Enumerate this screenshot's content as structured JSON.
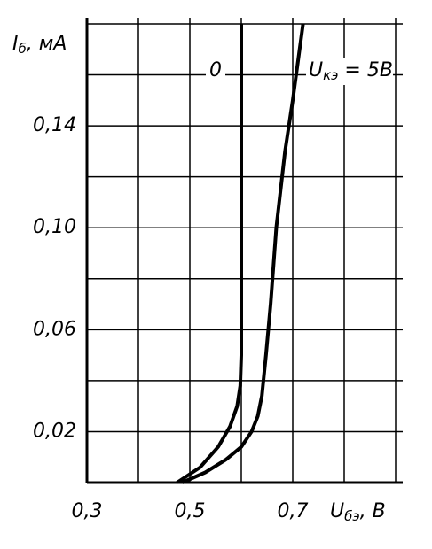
{
  "chart_data": {
    "type": "line",
    "y_label": {
      "main": "I",
      "sub": "б",
      "rest": ", мА"
    },
    "x_label": {
      "main": "U",
      "sub": "бэ",
      "rest": ", В"
    },
    "xlim": [
      0.3,
      0.9
    ],
    "ylim": [
      0,
      0.18
    ],
    "xticks": [
      {
        "value": 0.3,
        "label": "0,3"
      },
      {
        "value": 0.4,
        "label": null
      },
      {
        "value": 0.5,
        "label": "0,5"
      },
      {
        "value": 0.6,
        "label": null
      },
      {
        "value": 0.7,
        "label": "0,7"
      },
      {
        "value": 0.8,
        "label": null
      },
      {
        "value": 0.9,
        "label": null
      }
    ],
    "yticks": [
      {
        "value": 0,
        "label": null
      },
      {
        "value": 0.02,
        "label": "0,02"
      },
      {
        "value": 0.04,
        "label": null
      },
      {
        "value": 0.06,
        "label": "0,06"
      },
      {
        "value": 0.08,
        "label": null
      },
      {
        "value": 0.1,
        "label": "0,10"
      },
      {
        "value": 0.12,
        "label": null
      },
      {
        "value": 0.14,
        "label": "0,14"
      },
      {
        "value": 0.16,
        "label": null
      },
      {
        "value": 0.18,
        "label": null
      }
    ],
    "grid": true,
    "series": [
      {
        "name": {
          "main": "0"
        },
        "color": "#000000",
        "x": [
          0.475,
          0.52,
          0.555,
          0.578,
          0.592,
          0.598,
          0.6,
          0.6
        ],
        "values": [
          0,
          0.006,
          0.014,
          0.022,
          0.03,
          0.038,
          0.05,
          0.18
        ]
      },
      {
        "name": {
          "main": "U",
          "sub": "кэ",
          "rest": " = 5В"
        },
        "color": "#000000",
        "x": [
          0.485,
          0.53,
          0.57,
          0.6,
          0.62,
          0.632,
          0.64,
          0.648,
          0.657,
          0.668,
          0.685,
          0.7,
          0.72
        ],
        "values": [
          0,
          0.004,
          0.009,
          0.014,
          0.02,
          0.026,
          0.034,
          0.05,
          0.07,
          0.1,
          0.13,
          0.15,
          0.18
        ]
      }
    ]
  }
}
